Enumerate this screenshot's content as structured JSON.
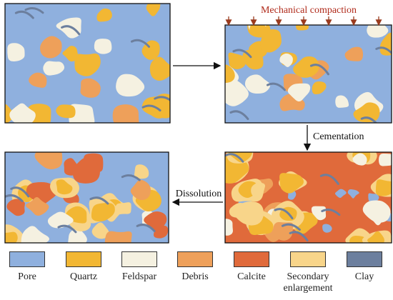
{
  "process": {
    "compaction": "Mechanical compaction",
    "cementation": "Cementation",
    "dissolution": "Dissolution"
  },
  "legend": [
    {
      "label": "Pore",
      "color": "#8fb0de"
    },
    {
      "label": "Quartz",
      "color": "#f2b733"
    },
    {
      "label": "Feldspar",
      "color": "#f5f1e1"
    },
    {
      "label": "Debris",
      "color": "#eea05a"
    },
    {
      "label": "Calcite",
      "color": "#e06a3b"
    },
    {
      "label": "Secondary enlargement",
      "color": "#f8d58a"
    },
    {
      "label": "Clay",
      "color": "#6c7f9e"
    }
  ]
}
